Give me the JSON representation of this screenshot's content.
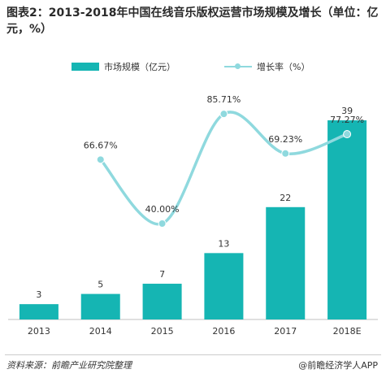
{
  "title": "图表2：2013-2018年中国在线音乐版权运营市场规模及增长（单位：亿元，%）",
  "colors": {
    "bar": "#15b5b3",
    "line": "#8fd9de",
    "axis": "#bfbfbf"
  },
  "chart_data": {
    "type": "bar",
    "categories": [
      "2013",
      "2014",
      "2015",
      "2016",
      "2017",
      "2018E"
    ],
    "series": [
      {
        "name": "市场规模（亿元）",
        "type": "bar",
        "values": [
          3,
          5,
          7,
          13,
          22,
          39
        ],
        "labels": [
          "3",
          "5",
          "7",
          "13",
          "22",
          "39"
        ]
      },
      {
        "name": "增长率（%）",
        "type": "line",
        "values": [
          null,
          66.67,
          40.0,
          85.71,
          69.23,
          77.27
        ],
        "labels": [
          "",
          "66.67%",
          "40.00%",
          "85.71%",
          "69.23%",
          "77.27%"
        ]
      }
    ],
    "ylim": [
      0,
      39
    ],
    "y2lim": [
      0,
      100
    ],
    "legend": "top",
    "grid": false
  },
  "footer": {
    "source": "资料来源：前瞻产业研究院整理",
    "brand": "@前瞻经济学人APP"
  }
}
